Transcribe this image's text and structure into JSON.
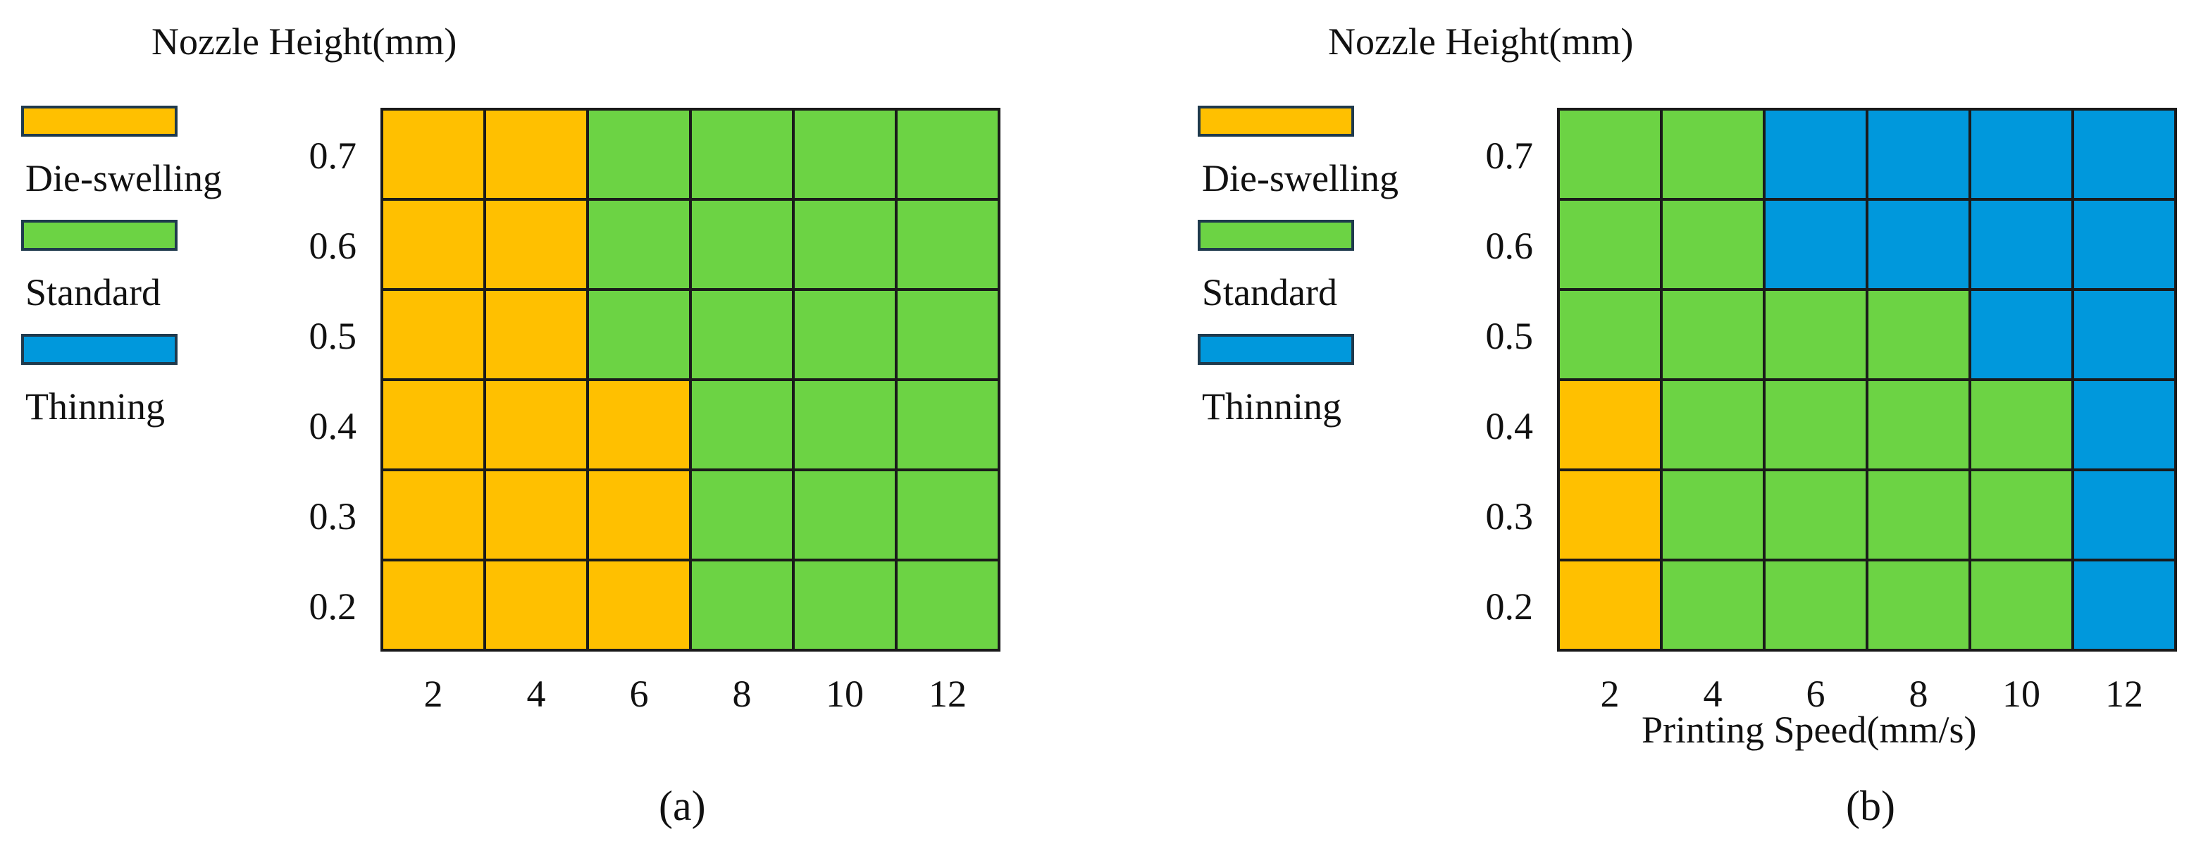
{
  "legend": [
    {
      "label": "Die-swelling",
      "color": "#FFC000"
    },
    {
      "label": "Standard",
      "color": "#6CD344"
    },
    {
      "label": "Thinning",
      "color": "#0098DC"
    }
  ],
  "grid_color": "#1a1a1a",
  "chart_data": [
    {
      "type": "heatmap",
      "ylabel": "Nozzle Height(mm)",
      "xlabel": "",
      "caption": "(a)",
      "x_ticks": [
        "2",
        "4",
        "6",
        "8",
        "10",
        "12"
      ],
      "y_ticks": [
        "0.7",
        "0.6",
        "0.5",
        "0.4",
        "0.3",
        "0.2"
      ],
      "grid": true,
      "legend_position": "left",
      "cells": [
        [
          "Die-swelling",
          "Die-swelling",
          "Standard",
          "Standard",
          "Standard",
          "Standard"
        ],
        [
          "Die-swelling",
          "Die-swelling",
          "Standard",
          "Standard",
          "Standard",
          "Standard"
        ],
        [
          "Die-swelling",
          "Die-swelling",
          "Standard",
          "Standard",
          "Standard",
          "Standard"
        ],
        [
          "Die-swelling",
          "Die-swelling",
          "Die-swelling",
          "Standard",
          "Standard",
          "Standard"
        ],
        [
          "Die-swelling",
          "Die-swelling",
          "Die-swelling",
          "Standard",
          "Standard",
          "Standard"
        ],
        [
          "Die-swelling",
          "Die-swelling",
          "Die-swelling",
          "Standard",
          "Standard",
          "Standard"
        ]
      ]
    },
    {
      "type": "heatmap",
      "ylabel": "Nozzle Height(mm)",
      "xlabel": "Printing Speed(mm/s)",
      "caption": "(b)",
      "x_ticks": [
        "2",
        "4",
        "6",
        "8",
        "10",
        "12"
      ],
      "y_ticks": [
        "0.7",
        "0.6",
        "0.5",
        "0.4",
        "0.3",
        "0.2"
      ],
      "grid": true,
      "legend_position": "left",
      "cells": [
        [
          "Standard",
          "Standard",
          "Thinning",
          "Thinning",
          "Thinning",
          "Thinning"
        ],
        [
          "Standard",
          "Standard",
          "Thinning",
          "Thinning",
          "Thinning",
          "Thinning"
        ],
        [
          "Standard",
          "Standard",
          "Standard",
          "Standard",
          "Thinning",
          "Thinning"
        ],
        [
          "Die-swelling",
          "Standard",
          "Standard",
          "Standard",
          "Standard",
          "Thinning"
        ],
        [
          "Die-swelling",
          "Standard",
          "Standard",
          "Standard",
          "Standard",
          "Thinning"
        ],
        [
          "Die-swelling",
          "Standard",
          "Standard",
          "Standard",
          "Standard",
          "Thinning"
        ]
      ]
    }
  ]
}
